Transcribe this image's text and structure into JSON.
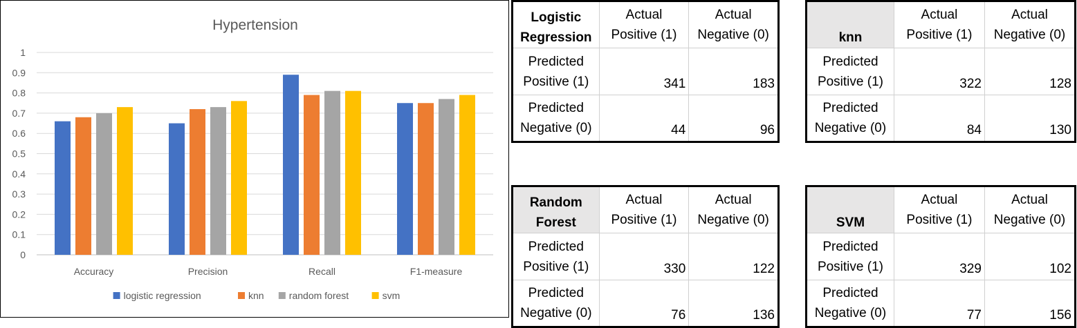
{
  "chart_data": {
    "type": "bar",
    "title": "Hypertension",
    "categories": [
      "Accuracy",
      "Precision",
      "Recall",
      "F1-measure"
    ],
    "series": [
      {
        "name": "logistic regression",
        "color": "#4472c4",
        "values": [
          0.66,
          0.65,
          0.89,
          0.75
        ]
      },
      {
        "name": "knn",
        "color": "#ed7d31",
        "values": [
          0.68,
          0.72,
          0.79,
          0.75
        ]
      },
      {
        "name": "random forest",
        "color": "#a5a5a5",
        "values": [
          0.7,
          0.73,
          0.81,
          0.77
        ]
      },
      {
        "name": "svm",
        "color": "#ffc000",
        "values": [
          0.73,
          0.76,
          0.81,
          0.79
        ]
      }
    ],
    "ylim": [
      0,
      1
    ],
    "yticks": [
      "0",
      "0.1",
      "0.2",
      "0.3",
      "0.4",
      "0.5",
      "0.6",
      "0.7",
      "0.8",
      "0.9",
      "1"
    ],
    "grid": true,
    "legend_position": "bottom"
  },
  "tables": [
    {
      "title_line1": "Logistic",
      "title_line2": "Regression",
      "shaded": false,
      "col1_line1": "Actual",
      "col1_line2": "Positive (1)",
      "col2_line1": "Actual",
      "col2_line2": "Negative (0)",
      "row1_line1": "Predicted",
      "row1_line2": "Positive (1)",
      "row2_line1": "Predicted",
      "row2_line2": "Negative (0)",
      "tp": "341",
      "fp": "183",
      "fn": "44",
      "tn": "96"
    },
    {
      "title_line1": "",
      "title_line2": "knn",
      "shaded": true,
      "col1_line1": "Actual",
      "col1_line2": "Positive (1)",
      "col2_line1": "Actual",
      "col2_line2": "Negative (0)",
      "row1_line1": "Predicted",
      "row1_line2": "Positive (1)",
      "row2_line1": "Predicted",
      "row2_line2": "Negative (0)",
      "tp": "322",
      "fp": "128",
      "fn": "84",
      "tn": "130"
    },
    {
      "title_line1": "Random",
      "title_line2": "Forest",
      "shaded": true,
      "col1_line1": "Actual",
      "col1_line2": "Positive (1)",
      "col2_line1": "Actual",
      "col2_line2": "Negative (0)",
      "row1_line1": "Predicted",
      "row1_line2": "Positive (1)",
      "row2_line1": "Predicted",
      "row2_line2": "Negative (0)",
      "tp": "330",
      "fp": "122",
      "fn": "76",
      "tn": "136"
    },
    {
      "title_line1": "",
      "title_line2": "SVM",
      "shaded": true,
      "col1_line1": "Actual",
      "col1_line2": "Positive (1)",
      "col2_line1": "Actual",
      "col2_line2": "Negative (0)",
      "row1_line1": "Predicted",
      "row1_line2": "Positive (1)",
      "row2_line1": "Predicted",
      "row2_line2": "Negative (0)",
      "tp": "329",
      "fp": "102",
      "fn": "77",
      "tn": "156"
    }
  ]
}
